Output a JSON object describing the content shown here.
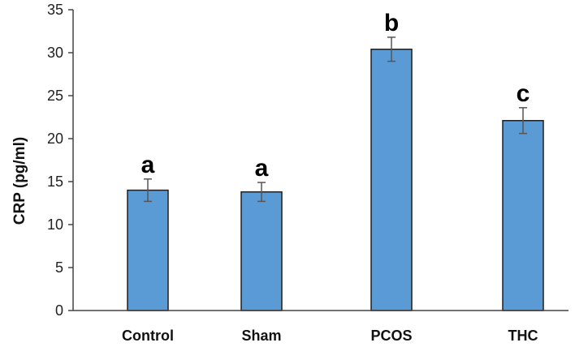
{
  "chart_data": {
    "type": "bar",
    "title": "",
    "xlabel": "",
    "ylabel": "CRP (pg/ml)",
    "ylim": [
      0,
      35
    ],
    "yticks": [
      0,
      5,
      10,
      15,
      20,
      25,
      30,
      35
    ],
    "grid": false,
    "categories": [
      "Control",
      "Sham",
      "PCOS",
      "THC"
    ],
    "values": [
      14.0,
      13.8,
      30.4,
      22.1
    ],
    "errors": [
      1.3,
      1.1,
      1.4,
      1.5
    ],
    "significance_labels": [
      "a",
      "a",
      "b",
      "c"
    ],
    "bar_color": "#5b9bd5",
    "bar_edge_color": "#1f1f1f",
    "error_bar_color": "#555555"
  }
}
